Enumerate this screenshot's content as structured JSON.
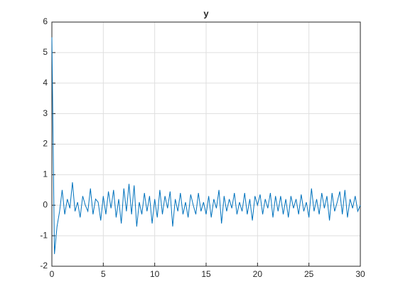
{
  "chart_data": {
    "type": "line",
    "title": "y",
    "x": [
      0,
      0.25,
      0.5,
      0.75,
      1,
      1.25,
      1.5,
      1.75,
      2,
      2.25,
      2.5,
      2.75,
      3,
      3.25,
      3.5,
      3.75,
      4,
      4.25,
      4.5,
      4.75,
      5,
      5.25,
      5.5,
      5.75,
      6,
      6.25,
      6.5,
      6.75,
      7,
      7.25,
      7.5,
      7.75,
      8,
      8.25,
      8.5,
      8.75,
      9,
      9.25,
      9.5,
      9.75,
      10,
      10.25,
      10.5,
      10.75,
      11,
      11.25,
      11.5,
      11.75,
      12,
      12.25,
      12.5,
      12.75,
      13,
      13.25,
      13.5,
      13.75,
      14,
      14.25,
      14.5,
      14.75,
      15,
      15.25,
      15.5,
      15.75,
      16,
      16.25,
      16.5,
      16.75,
      17,
      17.25,
      17.5,
      17.75,
      18,
      18.25,
      18.5,
      18.75,
      19,
      19.25,
      19.5,
      19.75,
      20,
      20.25,
      20.5,
      20.75,
      21,
      21.25,
      21.5,
      21.75,
      22,
      22.25,
      22.5,
      22.75,
      23,
      23.25,
      23.5,
      23.75,
      24,
      24.25,
      24.5,
      24.75,
      25,
      25.25,
      25.5,
      25.75,
      26,
      26.25,
      26.5,
      26.75,
      27,
      27.25,
      27.5,
      27.75,
      28,
      28.25,
      28.5,
      28.75,
      29,
      29.25,
      29.5,
      29.75,
      30
    ],
    "series": [
      {
        "name": "y",
        "color": "#0072bd",
        "values": [
          5.5,
          -1.6,
          -0.7,
          -0.2,
          0.5,
          -0.3,
          0.2,
          -0.1,
          0.75,
          -0.2,
          0.1,
          -0.4,
          0.3,
          0.0,
          -0.2,
          0.55,
          -0.3,
          0.2,
          0.1,
          -0.5,
          0.3,
          -0.3,
          0.45,
          -0.1,
          0.5,
          -0.4,
          0.2,
          -0.6,
          0.55,
          -0.2,
          0.7,
          -0.3,
          0.65,
          -0.7,
          0.1,
          -0.3,
          0.4,
          -0.2,
          0.3,
          -0.6,
          0.2,
          -0.4,
          0.5,
          -0.3,
          0.3,
          -0.1,
          0.45,
          -0.7,
          0.2,
          -0.2,
          0.4,
          -0.3,
          0.1,
          -0.4,
          0.35,
          0.0,
          -0.3,
          0.4,
          -0.2,
          0.1,
          -0.3,
          0.3,
          -0.4,
          0.2,
          -0.1,
          0.5,
          -0.6,
          0.3,
          -0.2,
          0.2,
          -0.1,
          0.4,
          -0.3,
          0.1,
          -0.2,
          0.4,
          -0.3,
          0.2,
          -0.5,
          0.3,
          0.0,
          0.35,
          -0.3,
          0.2,
          -0.1,
          0.4,
          -0.4,
          0.3,
          -0.2,
          0.3,
          -0.3,
          0.2,
          -0.4,
          0.3,
          -0.1,
          0.2,
          -0.3,
          0.35,
          -0.2,
          0.1,
          -0.4,
          0.55,
          -0.2,
          0.2,
          -0.3,
          0.4,
          -0.1,
          0.3,
          -0.5,
          0.4,
          -0.2,
          0.1,
          0.45,
          -0.3,
          0.5,
          -0.4,
          0.2,
          -0.1,
          0.3,
          -0.2,
          0.0
        ]
      }
    ],
    "xlim": [
      0,
      30
    ],
    "ylim": [
      -2,
      6
    ],
    "xticks": [
      0,
      5,
      10,
      15,
      20,
      25,
      30
    ],
    "yticks": [
      -2,
      -1,
      0,
      1,
      2,
      3,
      4,
      5,
      6
    ],
    "grid": true
  }
}
